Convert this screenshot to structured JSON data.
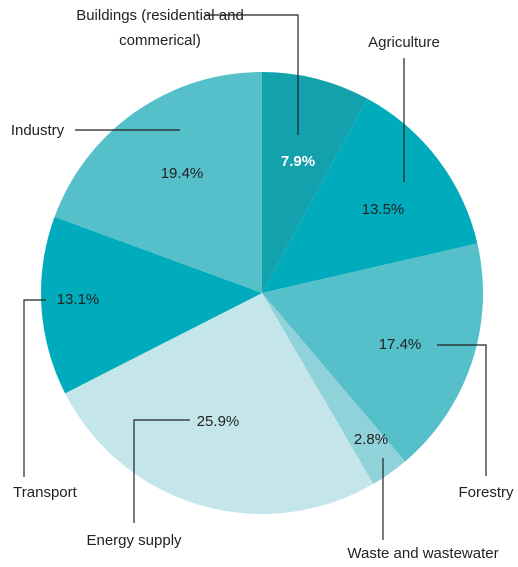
{
  "chart_data": {
    "type": "pie",
    "categories": [
      "Buildings (residential and commerical)",
      "Agriculture",
      "Forestry",
      "Waste and wastewater",
      "Energy supply",
      "Transport",
      "Industry"
    ],
    "values": [
      7.9,
      13.5,
      17.4,
      2.8,
      25.9,
      13.1,
      19.4
    ],
    "value_labels": [
      "7.9%",
      "13.5%",
      "17.4%",
      "2.8%",
      "25.9%",
      "13.1%",
      "19.4%"
    ],
    "colors": [
      "#13a1ae",
      "#00abbb",
      "#55bfca",
      "#8fd2d9",
      "#c4e6ea",
      "#00abbb",
      "#55bfca"
    ]
  }
}
